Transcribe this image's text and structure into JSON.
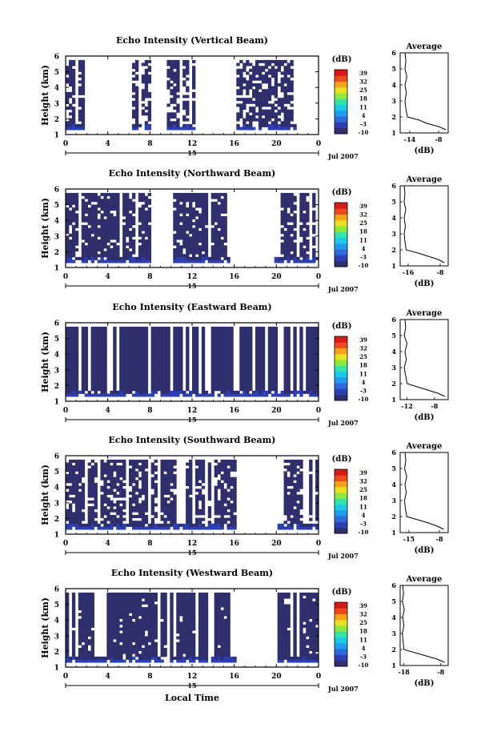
{
  "figure": {
    "x_axis_label": "Local Time",
    "date_label": "Jul 2007",
    "avg_title": "Average",
    "avg_xlabel": "(dB)",
    "colorbar_title": "(dB)"
  },
  "colorbar": {
    "ticks": [
      "39",
      "32",
      "25",
      "18",
      "11",
      "4",
      "-3",
      "-10"
    ],
    "colors": [
      "#2f2f6e",
      "#2c3fb5",
      "#2d6ae0",
      "#1f9bf0",
      "#1ccbe8",
      "#33e3a8",
      "#8fe83c",
      "#e8e022",
      "#f7a21a",
      "#ef4a1c",
      "#d61a1a"
    ]
  },
  "chart_data": [
    {
      "type": "heatmap",
      "title": "Echo Intensity (Vertical Beam)",
      "ylabel": "Height (km)",
      "ylim": [
        1,
        6
      ],
      "yticks": [
        "1",
        "2",
        "3",
        "4",
        "5",
        "6"
      ],
      "xlim": [
        0,
        24
      ],
      "xticks": [
        "0",
        "4",
        "8",
        "12",
        "16",
        "20",
        "0"
      ],
      "day_label": "15",
      "date": "Jul 2007",
      "dominant_value_db": -10,
      "coverage": 0.45,
      "valid_time_ranges_hours": [
        [
          0,
          1.8
        ],
        [
          6.3,
          8.2
        ],
        [
          9.5,
          12.3
        ],
        [
          16.2,
          21.8
        ]
      ],
      "average_profile": {
        "xticks": [
          "-14",
          "-8"
        ],
        "xlim": [
          -16,
          -6
        ],
        "height_km": [
          1.2,
          1.4,
          1.6,
          1.8,
          2.0,
          2.5,
          3.0,
          3.5,
          4.0,
          4.5,
          5.0,
          5.5,
          6.0
        ],
        "value_db": [
          -6.5,
          -8.0,
          -10.5,
          -12.0,
          -14.5,
          -14.8,
          -15.0,
          -14.7,
          -15.0,
          -14.6,
          -15.0,
          -14.8,
          -15.0
        ]
      }
    },
    {
      "type": "heatmap",
      "title": "Echo Intensity (Northward Beam)",
      "ylabel": "Height (km)",
      "ylim": [
        1,
        6
      ],
      "yticks": [
        "1",
        "2",
        "3",
        "4",
        "5",
        "6"
      ],
      "xlim": [
        0,
        24
      ],
      "xticks": [
        "0",
        "4",
        "8",
        "12",
        "16",
        "20",
        "0"
      ],
      "day_label": "15",
      "date": "Jul 2007",
      "dominant_value_db": -10,
      "coverage": 0.62,
      "valid_time_ranges_hours": [
        [
          0,
          8.2
        ],
        [
          10.2,
          15.5
        ],
        [
          19.8,
          24
        ]
      ],
      "average_profile": {
        "xticks": [
          "-16",
          "-8"
        ],
        "xlim": [
          -18,
          -6
        ],
        "height_km": [
          1.2,
          1.4,
          1.6,
          1.8,
          2.0,
          2.5,
          3.0,
          3.5,
          4.0,
          4.5,
          5.0,
          5.5,
          6.0
        ],
        "value_db": [
          -7.0,
          -8.5,
          -11.0,
          -13.5,
          -16.5,
          -16.8,
          -17.0,
          -16.7,
          -17.0,
          -16.6,
          -17.0,
          -16.8,
          -17.0
        ]
      }
    },
    {
      "type": "heatmap",
      "title": "Echo Intensity (Eastward Beam)",
      "ylabel": "Height (km)",
      "ylim": [
        1,
        6
      ],
      "yticks": [
        "1",
        "2",
        "3",
        "4",
        "5",
        "6"
      ],
      "xlim": [
        0,
        24
      ],
      "xticks": [
        "0",
        "4",
        "8",
        "12",
        "16",
        "20",
        "0"
      ],
      "day_label": "15",
      "date": "Jul 2007",
      "dominant_value_db": -10,
      "coverage": 0.75,
      "valid_time_ranges_hours": [
        [
          0,
          24
        ]
      ],
      "average_profile": {
        "xticks": [
          "-12",
          "-8"
        ],
        "xlim": [
          -13,
          -6
        ],
        "height_km": [
          1.2,
          1.4,
          1.6,
          1.8,
          2.0,
          2.5,
          3.0,
          3.5,
          4.0,
          4.5,
          5.0,
          5.5,
          6.0
        ],
        "value_db": [
          -6.5,
          -7.5,
          -9.0,
          -10.5,
          -12.0,
          -12.2,
          -12.4,
          -12.1,
          -12.3,
          -12.0,
          -12.4,
          -12.2,
          -12.3
        ]
      }
    },
    {
      "type": "heatmap",
      "title": "Echo Intensity (Southward Beam)",
      "ylabel": "Height (km)",
      "ylim": [
        1,
        6
      ],
      "yticks": [
        "1",
        "2",
        "3",
        "4",
        "5",
        "6"
      ],
      "xlim": [
        0,
        24
      ],
      "xticks": [
        "0",
        "4",
        "8",
        "12",
        "16",
        "20",
        "0"
      ],
      "day_label": "15",
      "date": "Jul 2007",
      "dominant_value_db": -10,
      "coverage": 0.55,
      "valid_time_ranges_hours": [
        [
          0,
          16.2
        ],
        [
          20.2,
          24
        ]
      ],
      "average_profile": {
        "xticks": [
          "-15",
          "-8"
        ],
        "xlim": [
          -17,
          -6
        ],
        "height_km": [
          1.2,
          1.4,
          1.6,
          1.8,
          2.0,
          2.5,
          3.0,
          3.5,
          4.0,
          4.5,
          5.0,
          5.5,
          6.0
        ],
        "value_db": [
          -7.0,
          -8.5,
          -10.5,
          -13.0,
          -15.5,
          -15.8,
          -16.0,
          -15.6,
          -15.9,
          -15.5,
          -16.0,
          -15.7,
          -15.9
        ]
      }
    },
    {
      "type": "heatmap",
      "title": "Echo Intensity (Westward Beam)",
      "ylabel": "Height (km)",
      "ylim": [
        1,
        6
      ],
      "yticks": [
        "1",
        "2",
        "3",
        "4",
        "5",
        "6"
      ],
      "xlim": [
        0,
        24
      ],
      "xticks": [
        "0",
        "4",
        "8",
        "12",
        "16",
        "20",
        "0"
      ],
      "day_label": "15",
      "date": "Jul 2007",
      "dominant_value_db": -10,
      "coverage": 0.7,
      "valid_time_ranges_hours": [
        [
          0,
          16.2
        ],
        [
          20.2,
          24
        ]
      ],
      "average_profile": {
        "xticks": [
          "-18",
          "-8"
        ],
        "xlim": [
          -19,
          -6
        ],
        "height_km": [
          1.2,
          1.4,
          1.6,
          1.8,
          2.0,
          2.5,
          3.0,
          3.5,
          4.0,
          4.5,
          5.0,
          5.5,
          6.0
        ],
        "value_db": [
          -7.0,
          -9.0,
          -12.0,
          -15.0,
          -18.0,
          -18.2,
          -18.4,
          -18.0,
          -18.3,
          -17.9,
          -18.4,
          -18.1,
          -18.3
        ]
      }
    }
  ]
}
